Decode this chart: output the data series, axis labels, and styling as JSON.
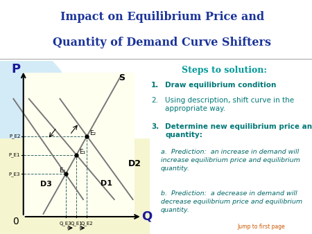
{
  "title_line1": "Impact on Equilibrium Price and",
  "title_line2": "Quantity of Demand Curve Shifters",
  "title_color": "#1a3399",
  "bg_main": "#ffffff",
  "bg_title": "#ddeef8",
  "bg_left": "#cce8f0",
  "bg_graph": "#ffffee",
  "line_color": "#aaaaaa",
  "curve_color": "#888888",
  "teal": "#008888",
  "steps_title": "Steps to solution:",
  "step1_num": "1.",
  "step1_text": "Draw equilibrium condition",
  "step2_num": "2.",
  "step2_text": "Using description, shift curve in the\nappropriate way.",
  "step3_num": "3.",
  "step3_text": "Determine new equilibrium price and\nquantity:",
  "step3a": "a.  Prediction:  an increase in demand will\nincrease equilibrium price and equilibrium\nquantity.",
  "step3b": "b.  Prediction:  a decrease in demand will\ndecrease equilibrium price and equilibrium\nquantity.",
  "jump_text": "Jump to first page"
}
